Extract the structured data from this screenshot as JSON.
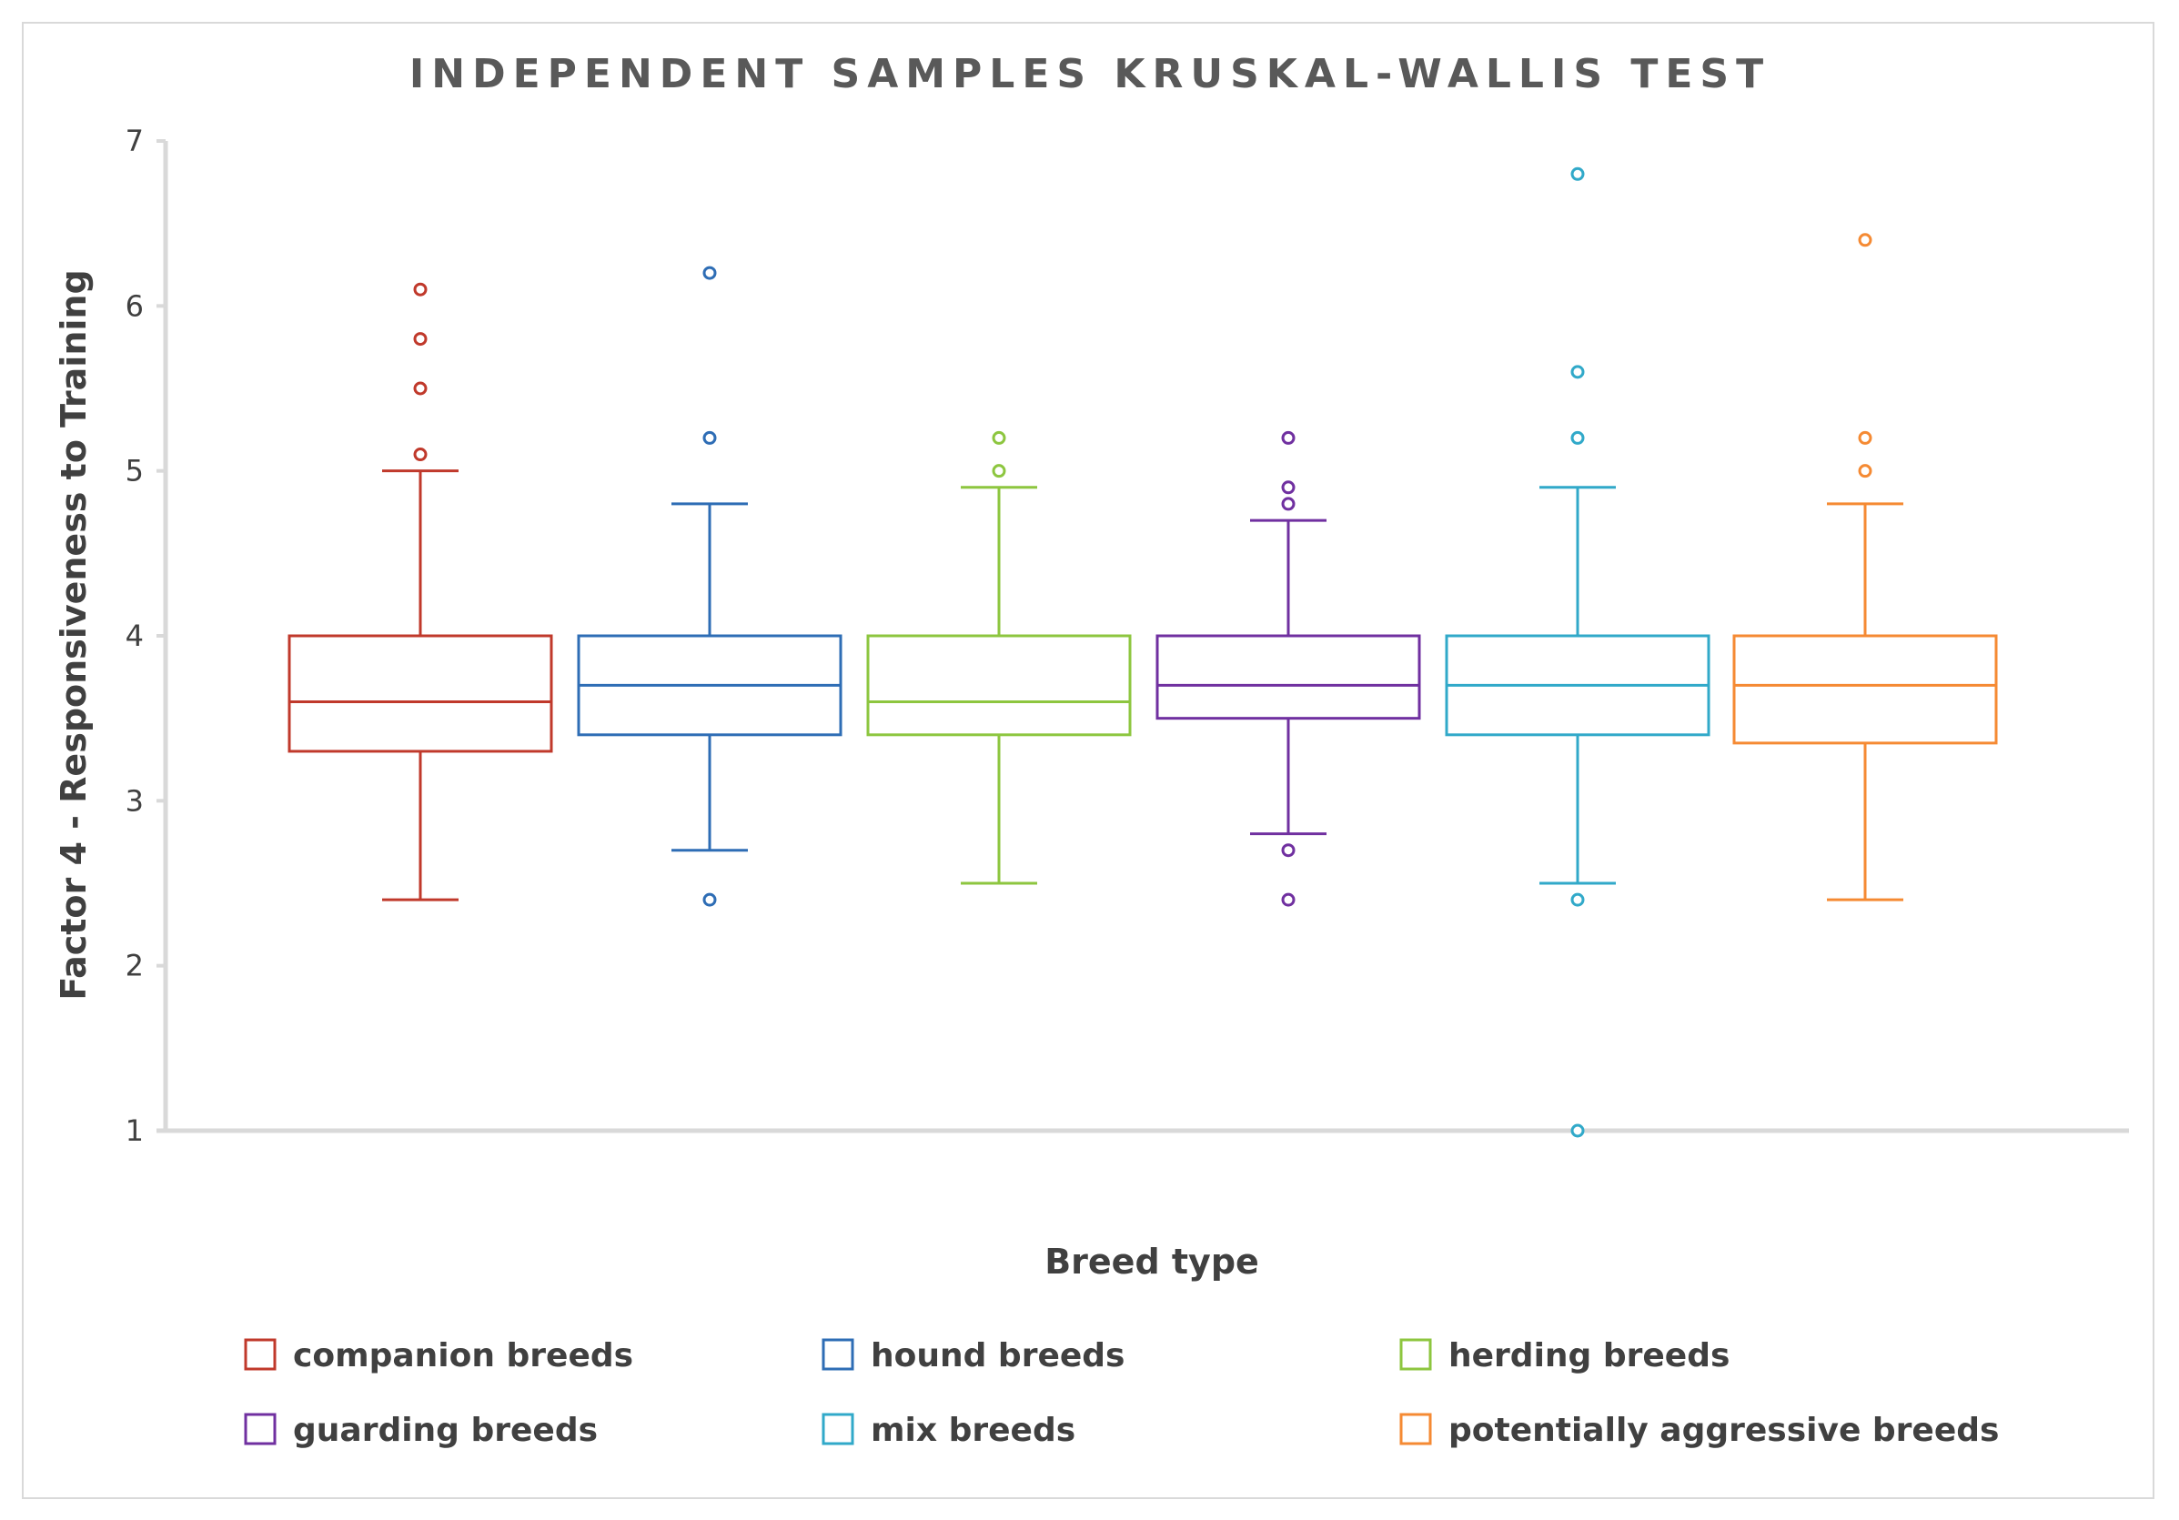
{
  "chart_data": {
    "type": "boxplot",
    "title": "INDEPENDENT SAMPLES KRUSKAL-WALLIS TEST",
    "xlabel": "Breed type",
    "ylabel": "Factor 4 - Responsiveness to Training",
    "ylim": [
      1,
      7
    ],
    "yticks": [
      "1",
      "2",
      "3",
      "4",
      "5",
      "6",
      "7"
    ],
    "grid": false,
    "legend_position": "bottom",
    "series": [
      {
        "name": "companion breeds",
        "color": "#c0392b",
        "whisker_low": 2.4,
        "q1": 3.3,
        "median": 3.6,
        "q3": 4.0,
        "whisker_high": 5.0,
        "outliers": [
          5.1,
          5.5,
          5.8,
          6.1
        ]
      },
      {
        "name": "hound breeds",
        "color": "#2e6db5",
        "whisker_low": 2.7,
        "q1": 3.4,
        "median": 3.7,
        "q3": 4.0,
        "whisker_high": 4.8,
        "outliers": [
          2.4,
          5.2,
          6.2
        ]
      },
      {
        "name": "herding breeds",
        "color": "#8dc63f",
        "whisker_low": 2.5,
        "q1": 3.4,
        "median": 3.6,
        "q3": 4.0,
        "whisker_high": 4.9,
        "outliers": [
          5.0,
          5.2
        ]
      },
      {
        "name": "guarding breeds",
        "color": "#7030a0",
        "whisker_low": 2.8,
        "q1": 3.5,
        "median": 3.7,
        "q3": 4.0,
        "whisker_high": 4.7,
        "outliers": [
          2.4,
          2.7,
          4.8,
          4.9,
          5.2
        ]
      },
      {
        "name": "mix breeds",
        "color": "#31a9c9",
        "whisker_low": 2.5,
        "q1": 3.4,
        "median": 3.7,
        "q3": 4.0,
        "whisker_high": 4.9,
        "outliers": [
          1.0,
          2.4,
          5.2,
          5.6,
          6.8
        ]
      },
      {
        "name": "potentially aggressive breeds",
        "color": "#f58a33",
        "whisker_low": 2.4,
        "q1": 3.35,
        "median": 3.7,
        "q3": 4.0,
        "whisker_high": 4.8,
        "outliers": [
          5.0,
          5.2,
          6.4
        ]
      }
    ]
  }
}
